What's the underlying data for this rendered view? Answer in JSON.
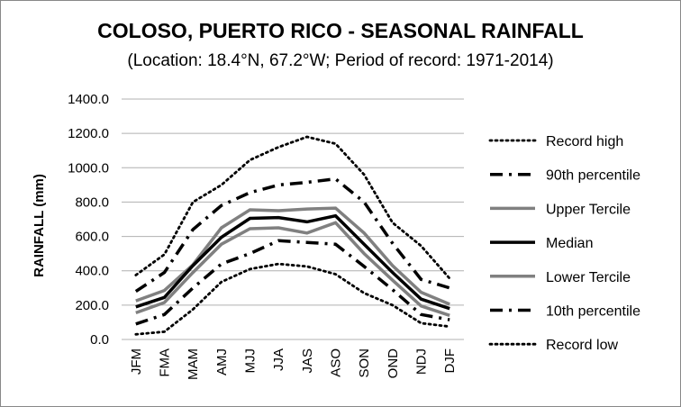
{
  "chart_data": {
    "type": "line",
    "title": "COLOSO, PUERTO RICO - SEASONAL RAINFALL",
    "subtitle": "(Location: 18.4°N, 67.2°W; Period of record: 1971-2014)",
    "xlabel": "",
    "ylabel": "RAINFALL (mm)",
    "ylim": [
      0,
      1400
    ],
    "yticks": [
      "0.0",
      "200.0",
      "400.0",
      "600.0",
      "800.0",
      "1000.0",
      "1200.0",
      "1400.0"
    ],
    "grid": "horizontal",
    "legend": "right",
    "categories": [
      "JFM",
      "FMA",
      "MAM",
      "AMJ",
      "MJJ",
      "JJA",
      "JAS",
      "ASO",
      "SON",
      "OND",
      "NDJ",
      "DJF"
    ],
    "series": [
      {
        "name": "Record high",
        "style": "dotted",
        "color": "#000000",
        "values": [
          375,
          495,
          800,
          900,
          1045,
          1120,
          1180,
          1140,
          960,
          680,
          545,
          355
        ]
      },
      {
        "name": "90th percentile",
        "style": "dashdot",
        "color": "#000000",
        "values": [
          280,
          390,
          640,
          780,
          855,
          900,
          915,
          935,
          800,
          560,
          350,
          300
        ]
      },
      {
        "name": "Upper Tercile",
        "style": "solid",
        "color": "#808080",
        "values": [
          225,
          285,
          435,
          650,
          755,
          750,
          760,
          765,
          620,
          430,
          275,
          205
        ]
      },
      {
        "name": "Median",
        "style": "solid",
        "color": "#000000",
        "values": [
          190,
          245,
          430,
          595,
          705,
          710,
          685,
          720,
          555,
          390,
          235,
          180
        ]
      },
      {
        "name": "Lower Tercile",
        "style": "solid",
        "color": "#808080",
        "values": [
          155,
          215,
          390,
          555,
          645,
          650,
          620,
          680,
          500,
          345,
          195,
          140
        ]
      },
      {
        "name": "10th percentile",
        "style": "dashdot",
        "color": "#000000",
        "values": [
          90,
          145,
          300,
          440,
          500,
          575,
          565,
          555,
          425,
          290,
          145,
          115
        ]
      },
      {
        "name": "Record low",
        "style": "dotted",
        "color": "#000000",
        "values": [
          30,
          45,
          175,
          335,
          410,
          440,
          425,
          380,
          270,
          200,
          95,
          75
        ]
      }
    ]
  }
}
